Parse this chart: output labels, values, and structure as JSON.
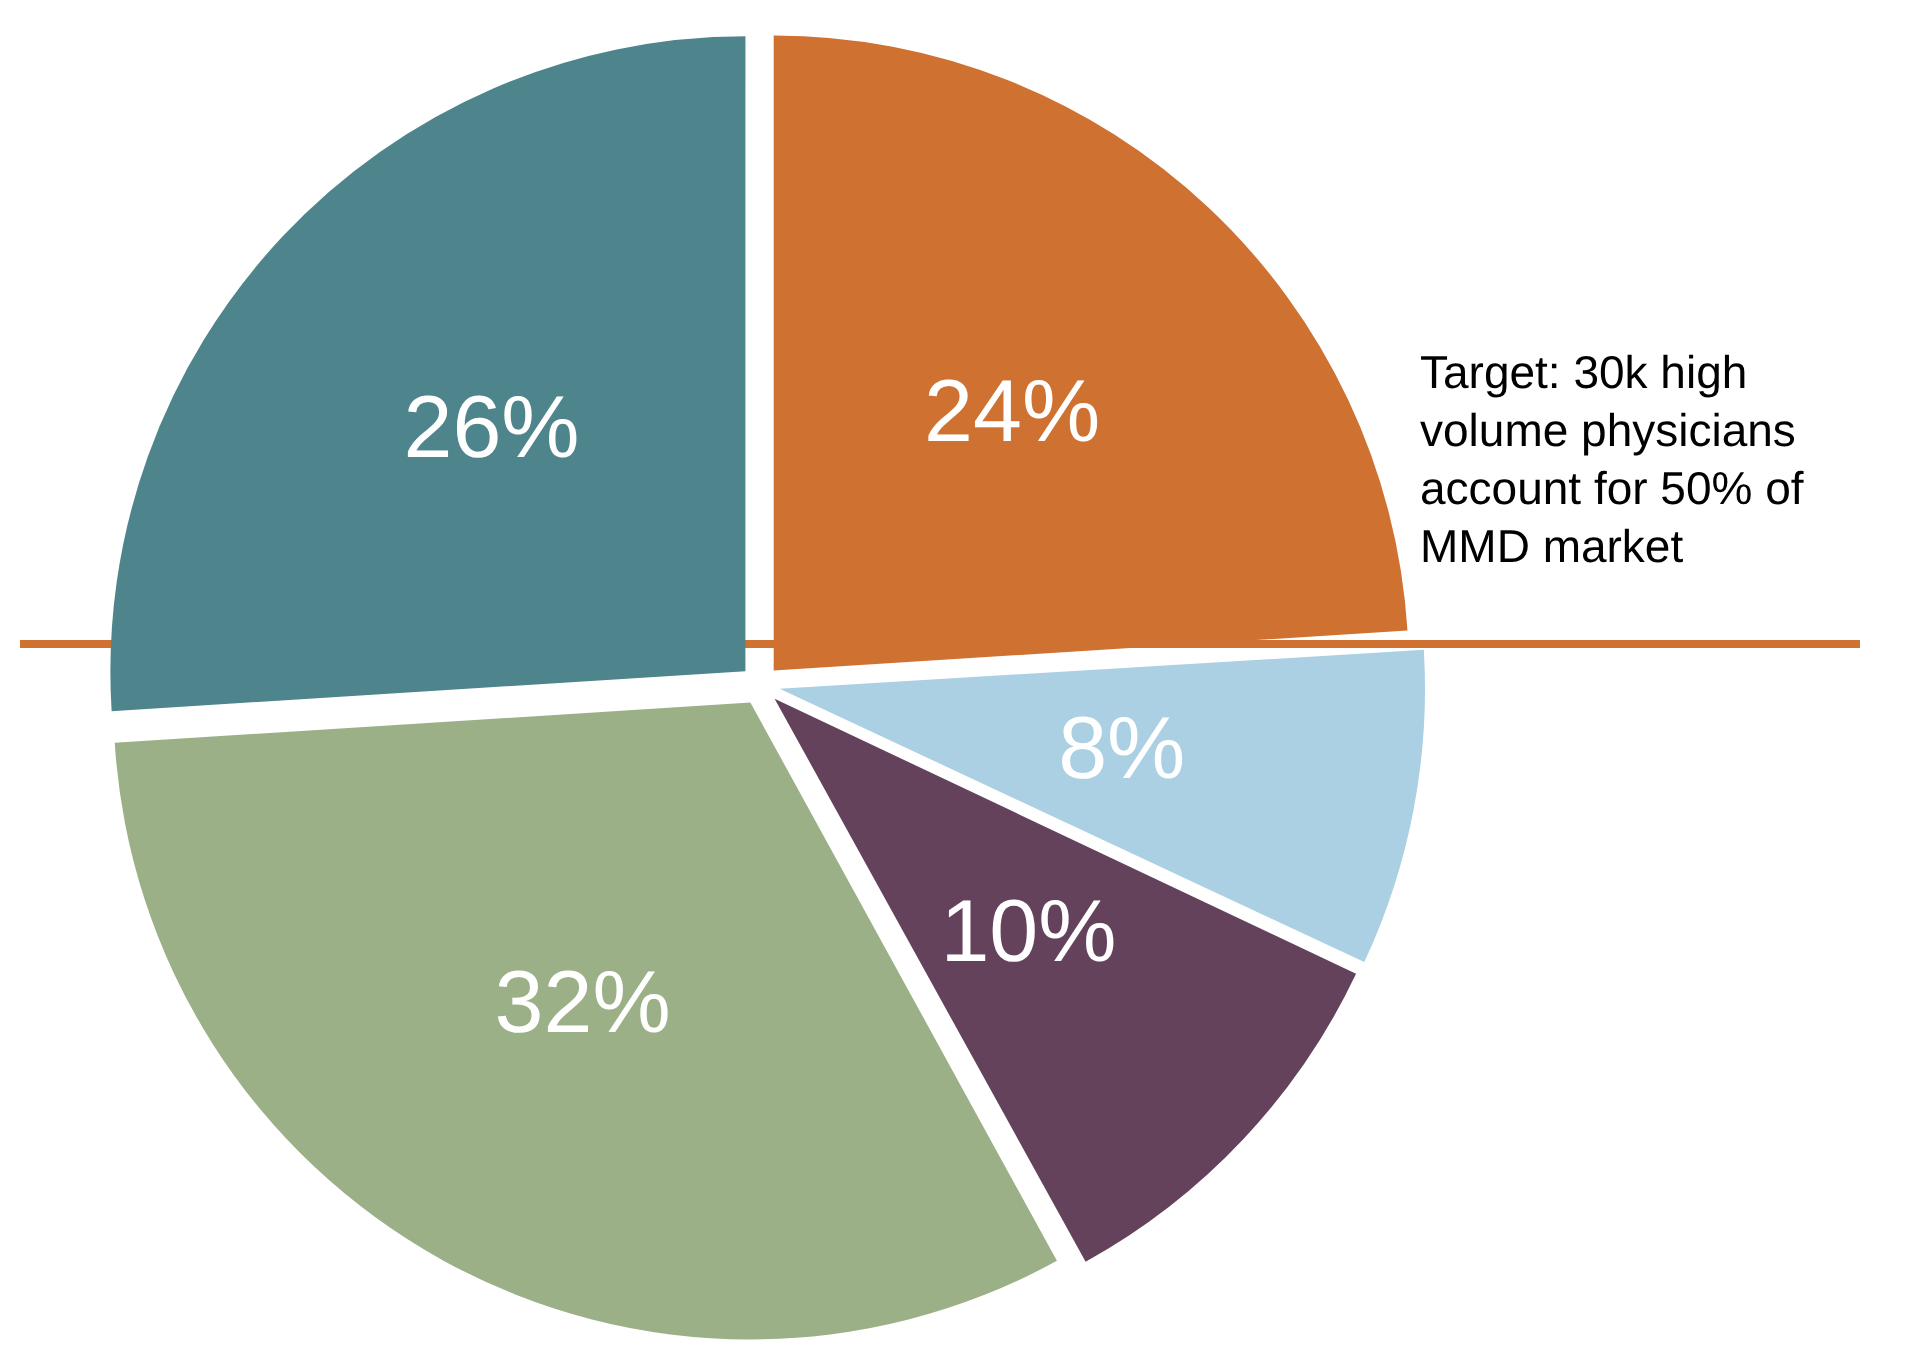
{
  "chart_data": {
    "type": "pie",
    "categories": [
      null,
      null,
      null,
      null,
      null
    ],
    "values": [
      24,
      8,
      10,
      32,
      26
    ],
    "colors": [
      "#cf7131",
      "#abd0e4",
      "#65425b",
      "#9bb087",
      "#4e858c"
    ],
    "value_labels": [
      "24%",
      "8%",
      "10%",
      "32%",
      "26%"
    ],
    "annotations": [
      "Target: 30k high volume physicians account for 50% of MMD market"
    ],
    "legend": false
  }
}
